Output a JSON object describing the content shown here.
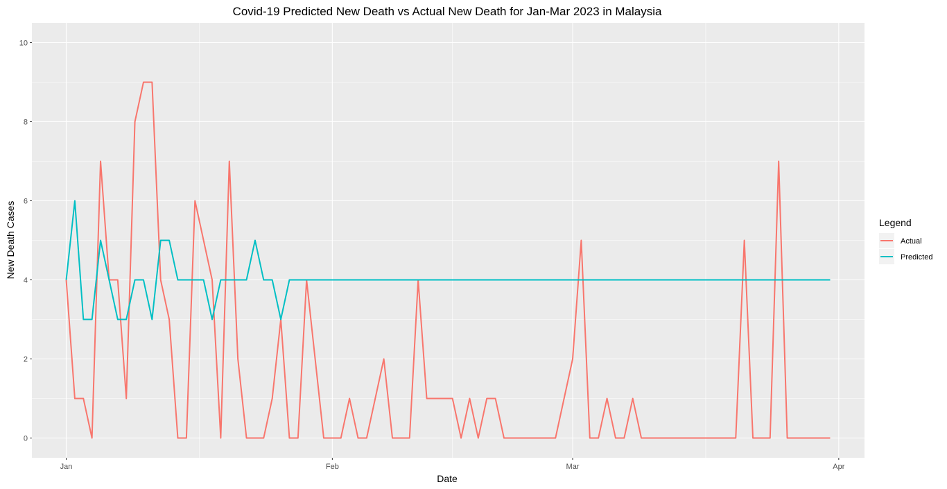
{
  "chart_data": {
    "type": "line",
    "title": "Covid-19 Predicted New Death vs Actual New Death for Jan-Mar 2023 in Malaysia",
    "xlabel": "Date",
    "ylabel": "New Death Cases",
    "xlim": [
      "2022-12-28",
      "2023-04-04"
    ],
    "ylim": [
      -0.5,
      10.5
    ],
    "x_ticks": [
      {
        "date": "2023-01-01",
        "label": "Jan"
      },
      {
        "date": "2023-02-01",
        "label": "Feb"
      },
      {
        "date": "2023-03-01",
        "label": "Mar"
      },
      {
        "date": "2023-04-01",
        "label": "Apr"
      }
    ],
    "y_ticks": [
      0,
      2,
      4,
      6,
      8,
      10
    ],
    "grid": true,
    "panel_background": "#ebebeb",
    "legend": {
      "title": "Legend",
      "position": "right"
    },
    "series": [
      {
        "name": "Actual",
        "color": "#f8766d",
        "points": [
          [
            "2023-01-01",
            4
          ],
          [
            "2023-01-02",
            1
          ],
          [
            "2023-01-03",
            1
          ],
          [
            "2023-01-04",
            0
          ],
          [
            "2023-01-05",
            7
          ],
          [
            "2023-01-06",
            4
          ],
          [
            "2023-01-07",
            4
          ],
          [
            "2023-01-08",
            1
          ],
          [
            "2023-01-09",
            8
          ],
          [
            "2023-01-10",
            9
          ],
          [
            "2023-01-11",
            9
          ],
          [
            "2023-01-12",
            4
          ],
          [
            "2023-01-13",
            3
          ],
          [
            "2023-01-14",
            0
          ],
          [
            "2023-01-15",
            0
          ],
          [
            "2023-01-16",
            6
          ],
          [
            "2023-01-17",
            5
          ],
          [
            "2023-01-18",
            4
          ],
          [
            "2023-01-19",
            0
          ],
          [
            "2023-01-20",
            7
          ],
          [
            "2023-01-21",
            2
          ],
          [
            "2023-01-22",
            0
          ],
          [
            "2023-01-23",
            0
          ],
          [
            "2023-01-24",
            0
          ],
          [
            "2023-01-25",
            1
          ],
          [
            "2023-01-26",
            3
          ],
          [
            "2023-01-27",
            0
          ],
          [
            "2023-01-28",
            0
          ],
          [
            "2023-01-29",
            4
          ],
          [
            "2023-01-30",
            2
          ],
          [
            "2023-01-31",
            0
          ],
          [
            "2023-02-01",
            0
          ],
          [
            "2023-02-02",
            0
          ],
          [
            "2023-02-03",
            1
          ],
          [
            "2023-02-04",
            0
          ],
          [
            "2023-02-05",
            0
          ],
          [
            "2023-02-06",
            1
          ],
          [
            "2023-02-07",
            2
          ],
          [
            "2023-02-08",
            0
          ],
          [
            "2023-02-09",
            0
          ],
          [
            "2023-02-10",
            0
          ],
          [
            "2023-02-11",
            4
          ],
          [
            "2023-02-12",
            1
          ],
          [
            "2023-02-13",
            1
          ],
          [
            "2023-02-14",
            1
          ],
          [
            "2023-02-15",
            1
          ],
          [
            "2023-02-16",
            0
          ],
          [
            "2023-02-17",
            1
          ],
          [
            "2023-02-18",
            0
          ],
          [
            "2023-02-19",
            1
          ],
          [
            "2023-02-20",
            1
          ],
          [
            "2023-02-21",
            0
          ],
          [
            "2023-02-22",
            0
          ],
          [
            "2023-02-23",
            0
          ],
          [
            "2023-02-24",
            0
          ],
          [
            "2023-02-25",
            0
          ],
          [
            "2023-02-26",
            0
          ],
          [
            "2023-02-27",
            0
          ],
          [
            "2023-02-28",
            1
          ],
          [
            "2023-03-01",
            2
          ],
          [
            "2023-03-02",
            5
          ],
          [
            "2023-03-03",
            0
          ],
          [
            "2023-03-04",
            0
          ],
          [
            "2023-03-05",
            1
          ],
          [
            "2023-03-06",
            0
          ],
          [
            "2023-03-07",
            0
          ],
          [
            "2023-03-08",
            1
          ],
          [
            "2023-03-09",
            0
          ],
          [
            "2023-03-10",
            0
          ],
          [
            "2023-03-11",
            0
          ],
          [
            "2023-03-12",
            0
          ],
          [
            "2023-03-13",
            0
          ],
          [
            "2023-03-14",
            0
          ],
          [
            "2023-03-15",
            0
          ],
          [
            "2023-03-16",
            0
          ],
          [
            "2023-03-17",
            0
          ],
          [
            "2023-03-18",
            0
          ],
          [
            "2023-03-19",
            0
          ],
          [
            "2023-03-20",
            0
          ],
          [
            "2023-03-21",
            5
          ],
          [
            "2023-03-22",
            0
          ],
          [
            "2023-03-23",
            0
          ],
          [
            "2023-03-24",
            0
          ],
          [
            "2023-03-25",
            7
          ],
          [
            "2023-03-26",
            0
          ],
          [
            "2023-03-27",
            0
          ],
          [
            "2023-03-28",
            0
          ],
          [
            "2023-03-29",
            0
          ],
          [
            "2023-03-30",
            0
          ],
          [
            "2023-03-31",
            0
          ]
        ]
      },
      {
        "name": "Predicted",
        "color": "#00bfc4",
        "points": [
          [
            "2023-01-01",
            4
          ],
          [
            "2023-01-02",
            6
          ],
          [
            "2023-01-03",
            3
          ],
          [
            "2023-01-04",
            3
          ],
          [
            "2023-01-05",
            5
          ],
          [
            "2023-01-06",
            4
          ],
          [
            "2023-01-07",
            3
          ],
          [
            "2023-01-08",
            3
          ],
          [
            "2023-01-09",
            4
          ],
          [
            "2023-01-10",
            4
          ],
          [
            "2023-01-11",
            3
          ],
          [
            "2023-01-12",
            5
          ],
          [
            "2023-01-13",
            5
          ],
          [
            "2023-01-14",
            4
          ],
          [
            "2023-01-15",
            4
          ],
          [
            "2023-01-16",
            4
          ],
          [
            "2023-01-17",
            4
          ],
          [
            "2023-01-18",
            3
          ],
          [
            "2023-01-19",
            4
          ],
          [
            "2023-01-20",
            4
          ],
          [
            "2023-01-21",
            4
          ],
          [
            "2023-01-22",
            4
          ],
          [
            "2023-01-23",
            5
          ],
          [
            "2023-01-24",
            4
          ],
          [
            "2023-01-25",
            4
          ],
          [
            "2023-01-26",
            3
          ],
          [
            "2023-01-27",
            4
          ],
          [
            "2023-01-28",
            4
          ],
          [
            "2023-01-29",
            4
          ],
          [
            "2023-01-30",
            4
          ],
          [
            "2023-03-31",
            4
          ]
        ]
      }
    ]
  }
}
